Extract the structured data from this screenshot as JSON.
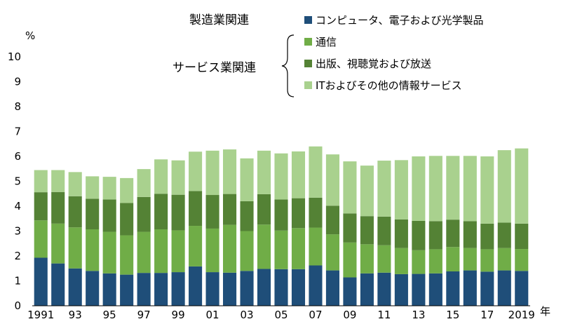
{
  "chart_data": {
    "type": "bar",
    "stacked": true,
    "y_unit_label": "%",
    "x_unit_label": "年",
    "ylim": [
      0,
      10
    ],
    "yticks": [
      "0",
      "1",
      "2",
      "3",
      "4",
      "5",
      "6",
      "7",
      "8",
      "9",
      "10"
    ],
    "x_tick_labels": [
      "1991",
      "93",
      "95",
      "97",
      "99",
      "01",
      "03",
      "05",
      "07",
      "09",
      "11",
      "13",
      "15",
      "17",
      "2019"
    ],
    "years": [
      1991,
      1992,
      1993,
      1994,
      1995,
      1996,
      1997,
      1998,
      1999,
      2000,
      2001,
      2002,
      2003,
      2004,
      2005,
      2006,
      2007,
      2008,
      2009,
      2010,
      2011,
      2012,
      2013,
      2014,
      2015,
      2016,
      2017,
      2018,
      2019
    ],
    "legend_groups": {
      "manufacturing": "製造業関連",
      "services": "サービス業関連"
    },
    "series": [
      {
        "name": "コンピュータ、電子および光学製品",
        "color": "#1f4e79",
        "values": [
          1.93,
          1.7,
          1.5,
          1.4,
          1.3,
          1.25,
          1.32,
          1.32,
          1.35,
          1.58,
          1.35,
          1.33,
          1.4,
          1.48,
          1.47,
          1.47,
          1.62,
          1.42,
          1.14,
          1.3,
          1.33,
          1.27,
          1.28,
          1.3,
          1.38,
          1.42,
          1.37,
          1.42,
          1.4
        ]
      },
      {
        "name": "通信",
        "color": "#70ad47",
        "values": [
          1.5,
          1.6,
          1.65,
          1.67,
          1.67,
          1.58,
          1.65,
          1.75,
          1.68,
          1.63,
          1.75,
          1.92,
          1.6,
          1.78,
          1.55,
          1.65,
          1.52,
          1.45,
          1.4,
          1.17,
          1.1,
          1.05,
          0.95,
          0.97,
          0.98,
          0.9,
          0.9,
          0.9,
          0.88
        ]
      },
      {
        "name": "出版、視聴覚および放送",
        "color": "#548235",
        "values": [
          1.13,
          1.27,
          1.25,
          1.23,
          1.3,
          1.3,
          1.4,
          1.43,
          1.43,
          1.4,
          1.35,
          1.24,
          1.2,
          1.22,
          1.25,
          1.2,
          1.2,
          1.15,
          1.17,
          1.13,
          1.15,
          1.15,
          1.18,
          1.13,
          1.1,
          1.08,
          1.03,
          1.02,
          1.02
        ]
      },
      {
        "name": "ITおよびその他の情報サービス",
        "color": "#a9d18e",
        "values": [
          0.89,
          0.88,
          0.97,
          0.9,
          0.91,
          1.0,
          1.12,
          1.38,
          1.38,
          1.58,
          1.78,
          1.79,
          1.72,
          1.75,
          1.85,
          1.88,
          2.06,
          2.06,
          2.09,
          2.03,
          2.25,
          2.38,
          2.59,
          2.62,
          2.56,
          2.62,
          2.7,
          2.91,
          3.02
        ]
      }
    ]
  }
}
